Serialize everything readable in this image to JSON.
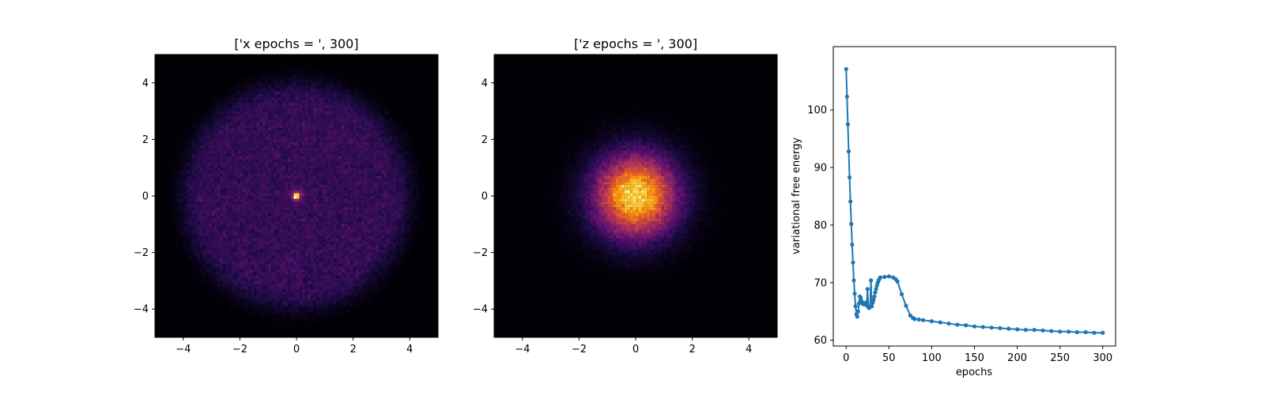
{
  "chart_data": [
    {
      "type": "heatmap",
      "title": "['x epochs = ', 300]",
      "xlim": [
        -5,
        5
      ],
      "ylim": [
        -5,
        5
      ],
      "xticks": [
        -4,
        -2,
        0,
        2,
        4
      ],
      "yticks": [
        -4,
        -2,
        0,
        2,
        4
      ],
      "xtick_labels": [
        "−4",
        "−2",
        "0",
        "2",
        "4"
      ],
      "ytick_labels": [
        "−4",
        "−2",
        "0",
        "2",
        "4"
      ],
      "bins": 100,
      "distribution": "uniform disk",
      "disk_radius": 4.0,
      "colormap": "inferno",
      "grid": false
    },
    {
      "type": "heatmap",
      "title": "['z epochs = ', 300]",
      "xlim": [
        -5,
        5
      ],
      "ylim": [
        -5,
        5
      ],
      "xticks": [
        -4,
        -2,
        0,
        2,
        4
      ],
      "yticks": [
        -4,
        -2,
        0,
        2,
        4
      ],
      "xtick_labels": [
        "−4",
        "−2",
        "0",
        "2",
        "4"
      ],
      "ytick_labels": [
        "−4",
        "−2",
        "0",
        "2",
        "4"
      ],
      "bins": 100,
      "distribution": "gaussian",
      "std": 1.0,
      "colormap": "inferno",
      "grid": false
    },
    {
      "type": "line",
      "title": "",
      "xlabel": "epochs",
      "ylabel": "variational free energy",
      "xlim": [
        -15,
        315
      ],
      "ylim": [
        59,
        111
      ],
      "xticks": [
        0,
        50,
        100,
        150,
        200,
        250,
        300
      ],
      "yticks": [
        60,
        70,
        80,
        90,
        100
      ],
      "marker": "dot",
      "color": "#1f77b4",
      "grid": false,
      "x": [
        0,
        1,
        2,
        3,
        4,
        5,
        6,
        7,
        8,
        9,
        10,
        11,
        12,
        13,
        14,
        15,
        16,
        17,
        18,
        19,
        20,
        21,
        22,
        23,
        24,
        25,
        26,
        27,
        28,
        29,
        30,
        31,
        32,
        33,
        34,
        35,
        36,
        37,
        38,
        39,
        40,
        45,
        50,
        55,
        58,
        60,
        65,
        70,
        75,
        78,
        80,
        85,
        90,
        100,
        110,
        120,
        130,
        140,
        150,
        160,
        170,
        180,
        190,
        200,
        210,
        220,
        230,
        240,
        250,
        260,
        270,
        280,
        290,
        300
      ],
      "y": [
        107.1,
        102.3,
        97.5,
        92.8,
        88.3,
        84.1,
        80.2,
        76.6,
        73.5,
        70.4,
        68.1,
        65.9,
        64.5,
        64.1,
        65.0,
        66.4,
        67.6,
        67.4,
        66.8,
        66.4,
        66.3,
        66.2,
        66.5,
        66.3,
        66.1,
        68.9,
        65.7,
        65.6,
        65.8,
        70.4,
        65.9,
        66.5,
        67.0,
        67.6,
        68.3,
        68.9,
        69.5,
        70.0,
        70.4,
        70.7,
        70.9,
        71.0,
        71.1,
        70.9,
        70.6,
        70.2,
        68.0,
        66.0,
        64.3,
        63.9,
        63.7,
        63.6,
        63.5,
        63.3,
        63.1,
        62.9,
        62.7,
        62.6,
        62.4,
        62.3,
        62.2,
        62.1,
        62.0,
        61.9,
        61.8,
        61.8,
        61.7,
        61.6,
        61.5,
        61.5,
        61.4,
        61.4,
        61.3,
        61.3
      ]
    }
  ]
}
